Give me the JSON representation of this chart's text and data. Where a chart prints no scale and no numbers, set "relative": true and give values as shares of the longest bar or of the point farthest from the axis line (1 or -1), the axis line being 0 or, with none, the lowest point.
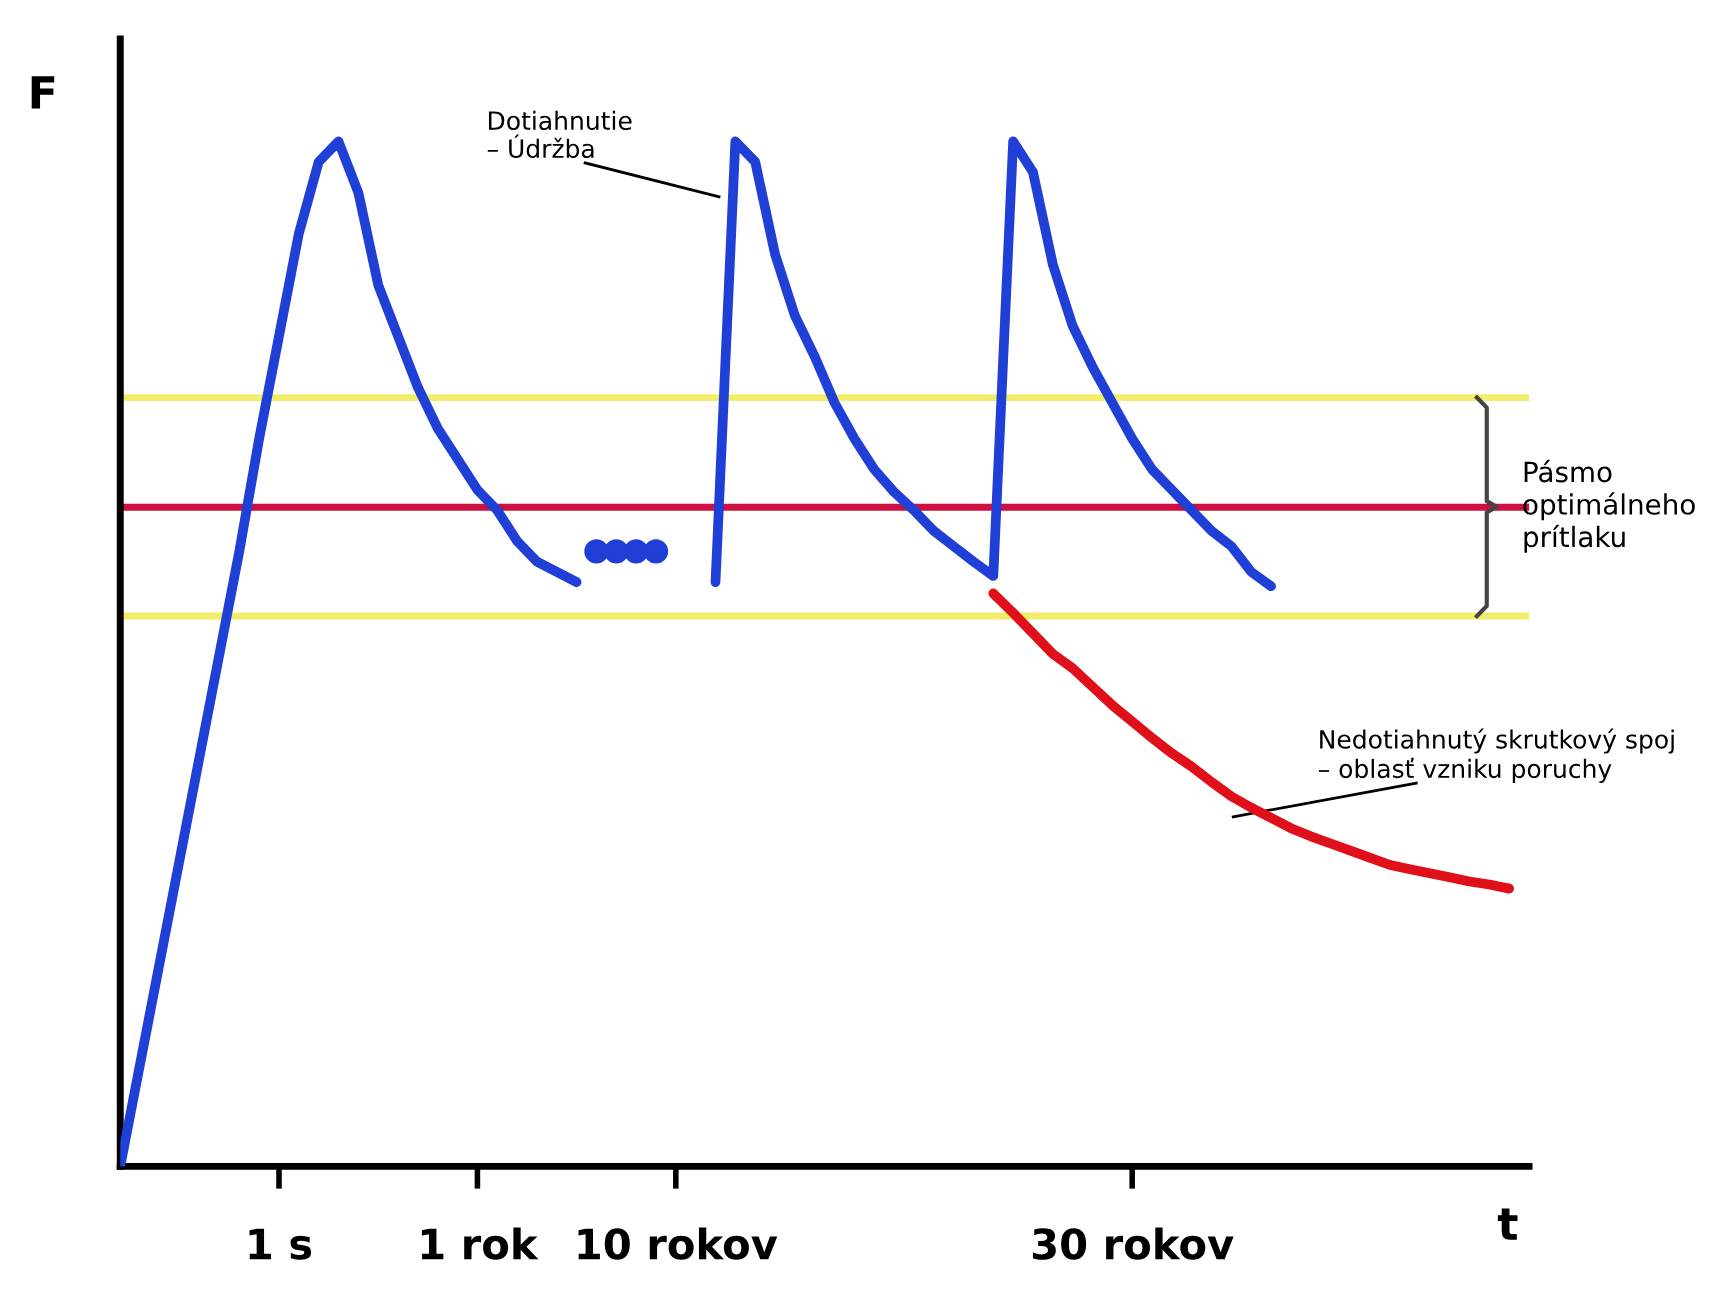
{
  "chart_data": {
    "type": "line",
    "relative": true,
    "xlabel": "t",
    "ylabel": "F",
    "categories": [
      null,
      null,
      null,
      null,
      null,
      null,
      null,
      null,
      "1 s",
      null,
      null,
      null,
      null,
      null,
      null,
      null,
      null,
      null,
      "1 rok",
      null,
      null,
      null,
      null,
      null,
      null,
      null,
      null,
      null,
      "10 rokov",
      null,
      null,
      null,
      null,
      null,
      null,
      null,
      null,
      null,
      null,
      null,
      null,
      null,
      null,
      null,
      null,
      null,
      null,
      null,
      null,
      null,
      null,
      "30 rokov",
      null,
      null,
      null,
      null,
      null,
      null,
      null,
      null,
      null,
      null,
      null,
      null,
      null,
      null,
      null,
      null,
      null,
      null,
      null,
      null
    ],
    "series": [
      {
        "color": "#1f3fd6",
        "values": [
          0,
          0.1,
          0.2,
          0.3,
          0.4,
          0.5,
          0.6,
          0.71,
          0.81,
          0.91,
          0.98,
          1.0,
          0.95,
          0.86,
          0.81,
          0.76,
          0.72,
          0.69,
          0.66,
          0.64,
          0.61,
          0.59,
          0.58,
          0.57,
          null,
          null,
          null,
          null,
          null,
          null,
          0.57,
          1.0,
          0.98,
          0.89,
          0.83,
          0.79,
          0.745,
          0.71,
          0.68,
          0.658,
          0.64,
          0.62,
          0.605,
          0.59,
          0.576,
          1.0,
          0.97,
          0.88,
          0.82,
          0.78,
          0.745,
          0.71,
          0.68,
          0.66,
          0.64,
          0.62,
          0.605,
          0.58,
          0.566,
          null,
          null,
          null,
          null,
          null,
          null,
          null,
          null,
          null,
          null,
          null,
          null,
          null
        ]
      },
      {
        "type": "scatter",
        "marker": "circle",
        "color": "#1f3fd6",
        "values": [
          null,
          null,
          null,
          null,
          null,
          null,
          null,
          null,
          null,
          null,
          null,
          null,
          null,
          null,
          null,
          null,
          null,
          null,
          null,
          null,
          null,
          null,
          null,
          null,
          0.6,
          0.6,
          0.6,
          0.6,
          null,
          null,
          null,
          null,
          null,
          null,
          null,
          null,
          null,
          null,
          null,
          null,
          null,
          null,
          null,
          null,
          null,
          null,
          null,
          null,
          null,
          null,
          null,
          null,
          null,
          null,
          null,
          null,
          null,
          null,
          null,
          null,
          null,
          null,
          null,
          null,
          null,
          null,
          null,
          null,
          null,
          null,
          null,
          null
        ]
      },
      {
        "color": "#e0101a",
        "values": [
          null,
          null,
          null,
          null,
          null,
          null,
          null,
          null,
          null,
          null,
          null,
          null,
          null,
          null,
          null,
          null,
          null,
          null,
          null,
          null,
          null,
          null,
          null,
          null,
          null,
          null,
          null,
          null,
          null,
          null,
          null,
          null,
          null,
          null,
          null,
          null,
          null,
          null,
          null,
          null,
          null,
          null,
          null,
          null,
          0.559,
          0.54,
          0.52,
          0.5,
          0.486,
          0.468,
          0.45,
          0.434,
          0.418,
          0.403,
          0.39,
          0.375,
          0.361,
          0.35,
          0.34,
          0.33,
          0.322,
          0.315,
          0.308,
          0.301,
          0.294,
          0.29,
          0.286,
          0.282,
          0.278,
          0.275,
          0.271,
          null
        ]
      }
    ],
    "ref_lines": [
      {
        "axis": "y",
        "value": 0.75,
        "color": "#f2ee6a"
      },
      {
        "axis": "y",
        "value": 0.643,
        "color": "#cc1040"
      },
      {
        "axis": "y",
        "value": 0.537,
        "color": "#f2ee6a"
      }
    ],
    "annotations": [
      "Dotiahnutie\n– Údržba",
      "Pásmo\noptimálneho\nprítlaku",
      "Nedotiahnutý skrutkový spoj\n– oblasť vzniku poruchy"
    ],
    "grid": false,
    "legend": false
  }
}
